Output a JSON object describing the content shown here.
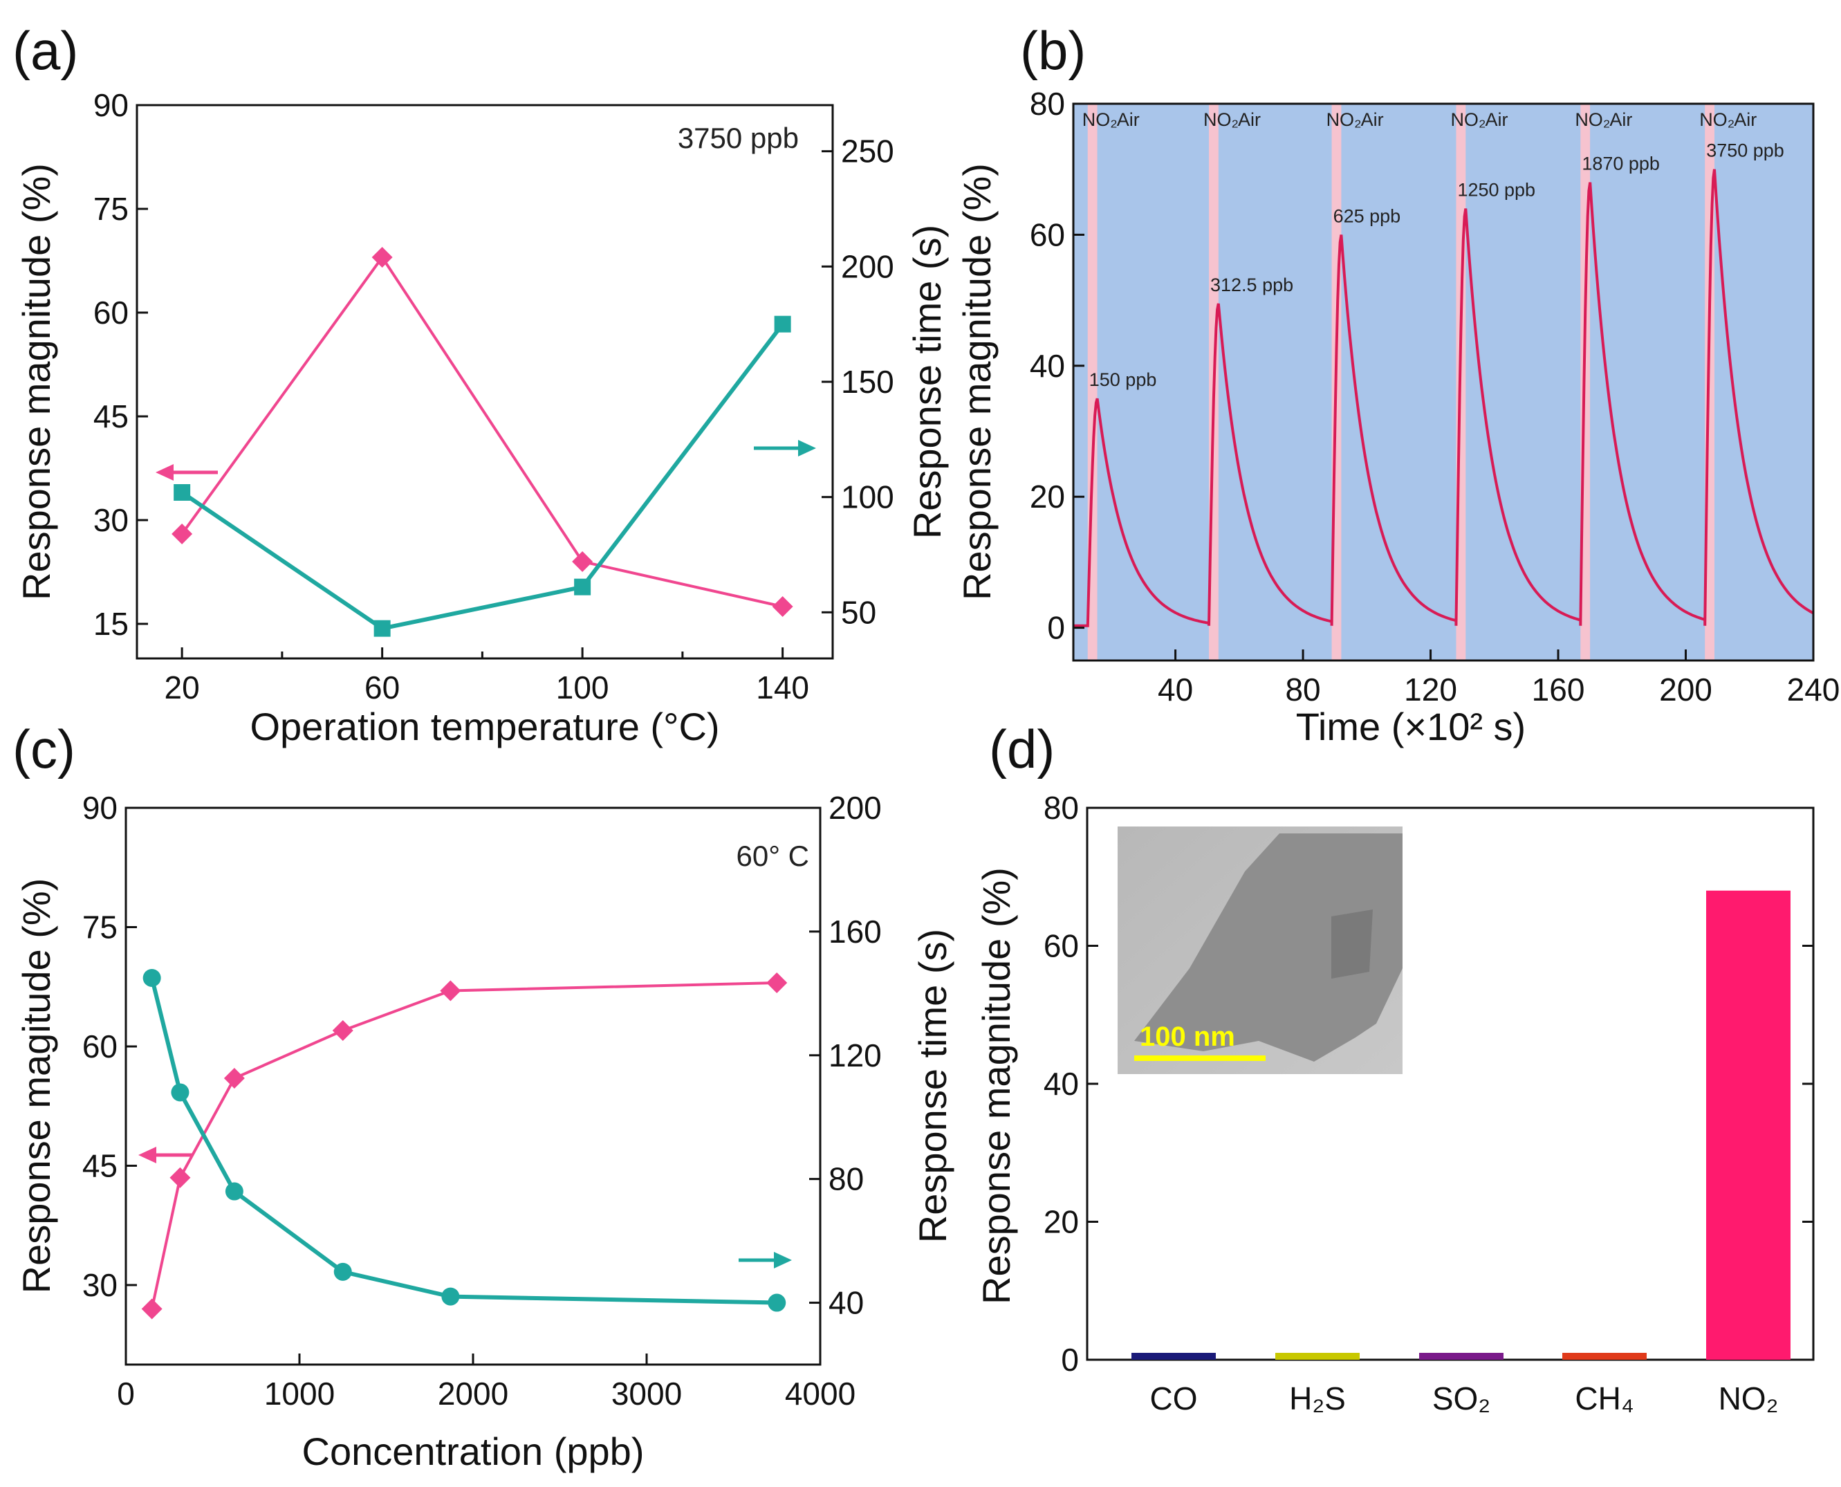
{
  "colors": {
    "pink": "#f0468f",
    "teal": "#1fa8a0",
    "crimson": "#d81b55",
    "blue_bg": "#a9c5ea",
    "pink_band": "#f6c3cf",
    "bar_co": "#1a1a78",
    "bar_h2s": "#c8c800",
    "bar_so2": "#7a1a8a",
    "bar_ch4": "#e03a1a",
    "bar_no2": "#ff1a6e"
  },
  "chart_data": [
    {
      "panel": "(a)",
      "type": "line",
      "note": "3750 ppb",
      "xlabel": "Operation temperature (°C)",
      "ylabel": "Response magnitude (%)",
      "y2label": "Response time (s)",
      "xticks": [
        "20",
        "60",
        "100",
        "140"
      ],
      "yticks": [
        "15",
        "30",
        "45",
        "60",
        "75",
        "90"
      ],
      "y2ticks": [
        "50",
        "100",
        "150",
        "200",
        "250"
      ],
      "xlim": [
        11,
        150
      ],
      "ylim": [
        10,
        90
      ],
      "y2lim": [
        30,
        270
      ],
      "series": [
        {
          "name": "Response magnitude",
          "axis": "left",
          "marker": "diamond",
          "color": "#f0468f",
          "x": [
            20,
            60,
            100,
            140
          ],
          "values": [
            28,
            68,
            24,
            17.5
          ]
        },
        {
          "name": "Response time",
          "axis": "right",
          "marker": "square",
          "color": "#1fa8a0",
          "x": [
            20,
            60,
            100,
            140
          ],
          "values": [
            102,
            43,
            61,
            175
          ]
        }
      ],
      "arrows": [
        {
          "axis": "left",
          "direction": "left"
        },
        {
          "axis": "right",
          "direction": "right"
        }
      ]
    },
    {
      "panel": "(b)",
      "type": "line",
      "xlabel": "Time (×10² s)",
      "ylabel": "Response magnitude (%)",
      "xticks": [
        "40",
        "80",
        "120",
        "160",
        "200",
        "240"
      ],
      "yticks": [
        "0",
        "20",
        "40",
        "60",
        "80"
      ],
      "xlim": [
        8,
        240
      ],
      "ylim": [
        -5,
        80
      ],
      "pulses": [
        {
          "start": 12.5,
          "peak": 35,
          "label": "150 ppb",
          "gas_label": "NO₂",
          "air_label": "Air"
        },
        {
          "start": 50.5,
          "peak": 49.5,
          "label": "312.5 ppb",
          "gas_label": "NO₂",
          "air_label": "Air"
        },
        {
          "start": 89,
          "peak": 60,
          "label": "625 ppb",
          "gas_label": "NO₂",
          "air_label": "Air"
        },
        {
          "start": 128,
          "peak": 64,
          "label": "1250 ppb",
          "gas_label": "NO₂",
          "air_label": "Air"
        },
        {
          "start": 167,
          "peak": 68,
          "label": "1870 ppb",
          "gas_label": "NO₂",
          "air_label": "Air"
        },
        {
          "start": 206,
          "peak": 70,
          "label": "3750 ppb",
          "gas_label": "NO₂",
          "air_label": "Air"
        }
      ],
      "pulse_width": 3,
      "decay_tau": 9
    },
    {
      "panel": "(c)",
      "type": "line",
      "note": "60° C",
      "xlabel": "Concentration (ppb)",
      "ylabel": "Response magitude (%)",
      "y2label": "Response time (s)",
      "xticks": [
        "0",
        "1000",
        "2000",
        "3000",
        "4000"
      ],
      "yticks": [
        "30",
        "45",
        "60",
        "75",
        "90"
      ],
      "y2ticks": [
        "40",
        "80",
        "120",
        "160",
        "200"
      ],
      "xlim": [
        0,
        4000
      ],
      "ylim": [
        20,
        90
      ],
      "y2lim": [
        20,
        200
      ],
      "series": [
        {
          "name": "Response magnitude",
          "axis": "left",
          "marker": "diamond",
          "color": "#f0468f",
          "x": [
            150,
            312.5,
            625,
            1250,
            1870,
            3750
          ],
          "values": [
            27,
            43.5,
            56,
            62,
            67,
            68
          ]
        },
        {
          "name": "Response time",
          "axis": "right",
          "marker": "circle",
          "color": "#1fa8a0",
          "x": [
            150,
            312.5,
            625,
            1250,
            1870,
            3750
          ],
          "values": [
            145,
            108,
            76,
            50,
            42,
            40
          ]
        }
      ],
      "arrows": [
        {
          "axis": "left",
          "direction": "left"
        },
        {
          "axis": "right",
          "direction": "right"
        }
      ]
    },
    {
      "panel": "(d)",
      "type": "bar",
      "ylabel": "Response magnitude (%)",
      "yticks": [
        "0",
        "20",
        "40",
        "60",
        "80"
      ],
      "ylim": [
        0,
        80
      ],
      "categories": [
        "CO",
        "H₂S",
        "SO₂",
        "CH₄",
        "NO₂"
      ],
      "values": [
        1,
        1,
        1,
        1,
        68
      ],
      "inset": {
        "scale_label": "100 nm"
      }
    }
  ]
}
